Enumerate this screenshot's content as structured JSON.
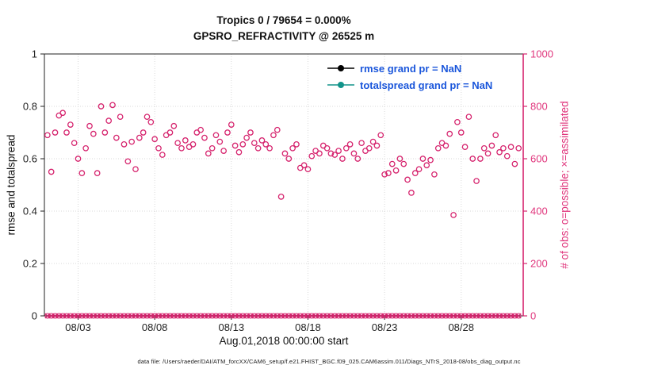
{
  "title_line1": "Tropics 0 / 79654 = 0.000%",
  "title_line2": "GPSRO_REFRACTIVITY @ 26525 m",
  "axes": {
    "left_label": "rmse and totalspread",
    "right_label": "# of obs: o=possible; ×=assimilated",
    "x_label": "Aug.01,2018 00:00:00 start"
  },
  "legend": {
    "rmse_label": "rmse grand pr = NaN",
    "totalspread_label": "totalspread grand pr = NaN"
  },
  "caption": "data file: /Users/raeder/DAI/ATM_forcXX/CAM6_setup/f.e21.FHIST_BGC.f09_025.CAM6assim.011/Diags_NTrS_2018-08/obs_diag_output.nc",
  "colors": {
    "pink": "#d6246e",
    "pink_text": "#e0357c",
    "teal": "#12948a",
    "legend_text_blue": "#1a56db",
    "grid": "#d9d9d9",
    "axis_black": "#222222"
  },
  "chart_data": {
    "type": "scatter",
    "title": "Tropics 0 / 79654 = 0.000% | GPSRO_REFRACTIVITY @ 26525 m",
    "xlabel": "Aug.01,2018 00:00:00 start",
    "ylabel_left": "rmse and totalspread",
    "ylabel_right": "# of obs: o=possible; ×=assimilated",
    "y_left_range": [
      0,
      1
    ],
    "y_right_range": [
      0,
      1000
    ],
    "x_range": [
      0.8,
      32.05
    ],
    "x_tick_days": [
      3,
      8,
      13,
      18,
      23,
      28
    ],
    "x_tick_labels": [
      "08/03",
      "08/08",
      "08/13",
      "08/18",
      "08/23",
      "08/28"
    ],
    "left_ticks": [
      0,
      0.2,
      0.4,
      0.6,
      0.8,
      1
    ],
    "left_tick_labels": [
      "0",
      "0.2",
      "0.4",
      "0.6",
      "0.8",
      "1"
    ],
    "right_ticks": [
      0,
      200,
      400,
      600,
      800,
      1000
    ],
    "right_tick_labels": [
      "0",
      "200",
      "400",
      "600",
      "800",
      "1000"
    ],
    "grid_right_values": [
      200,
      400,
      600,
      800
    ],
    "x_start_day": 1,
    "x_step_days": 0.25,
    "series": [
      {
        "name": "possible",
        "marker": "open-circle",
        "axis": "right",
        "values": [
          690,
          550,
          700,
          765,
          775,
          700,
          730,
          660,
          600,
          545,
          640,
          725,
          695,
          545,
          800,
          700,
          745,
          805,
          680,
          760,
          655,
          590,
          665,
          560,
          680,
          700,
          760,
          740,
          675,
          640,
          615,
          690,
          700,
          725,
          660,
          640,
          670,
          645,
          655,
          700,
          710,
          680,
          620,
          640,
          690,
          665,
          630,
          700,
          730,
          650,
          625,
          655,
          680,
          700,
          660,
          640,
          670,
          655,
          640,
          690,
          710,
          455,
          620,
          600,
          640,
          655,
          565,
          575,
          560,
          610,
          630,
          620,
          650,
          640,
          620,
          615,
          630,
          600,
          640,
          655,
          620,
          600,
          660,
          630,
          640,
          665,
          650,
          690,
          540,
          545,
          580,
          555,
          600,
          580,
          520,
          470,
          545,
          560,
          600,
          575,
          595,
          540,
          640,
          660,
          650,
          695,
          385,
          740,
          700,
          645,
          760,
          600,
          515,
          600,
          640,
          620,
          650,
          690,
          625,
          640,
          610,
          645,
          580,
          640
        ]
      },
      {
        "name": "assimilated",
        "marker": "x-and-circle",
        "axis": "right",
        "constant_value": 0
      }
    ],
    "legend_entries": [
      {
        "label": "rmse grand pr = NaN",
        "color": "#000000"
      },
      {
        "label": "totalspread grand pr = NaN",
        "color": "#12948a"
      }
    ]
  }
}
